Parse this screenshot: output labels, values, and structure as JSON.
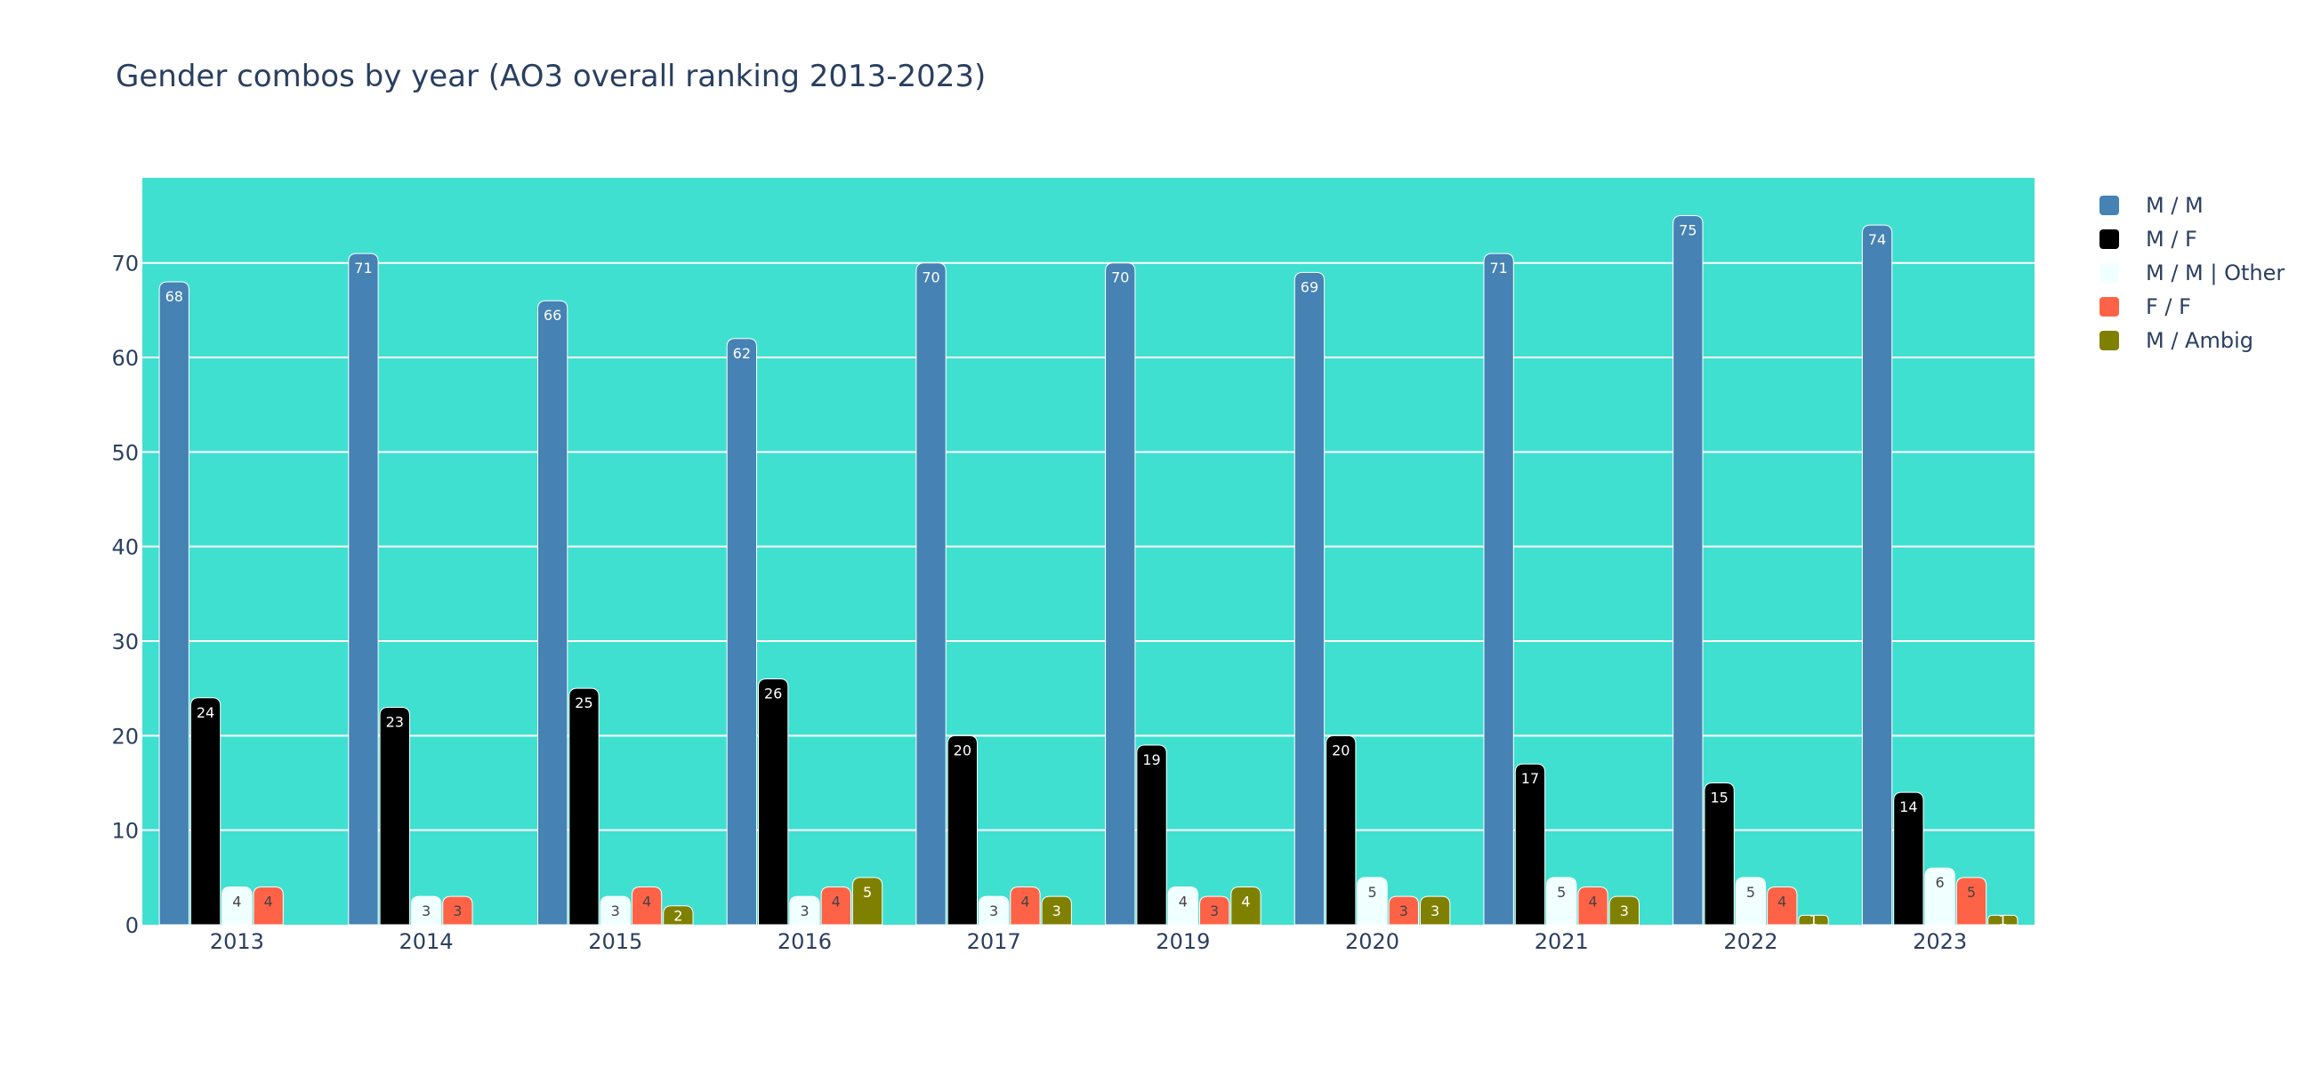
{
  "chart_data": {
    "type": "bar",
    "title": "Gender combos by year (AO3 overall ranking 2013-2023)",
    "xlabel": "",
    "ylabel": "",
    "categories": [
      "2013",
      "2014",
      "2015",
      "2016",
      "2017",
      "2019",
      "2020",
      "2021",
      "2022",
      "2023"
    ],
    "ylim": [
      0,
      79
    ],
    "yticks": [
      0,
      10,
      20,
      30,
      40,
      50,
      60,
      70
    ],
    "grid": true,
    "legend_position": "top-right",
    "plot_background": "#40e0d0",
    "series": [
      {
        "name": "M / M",
        "color": "#4682b4",
        "label_color": "#ffffff",
        "values": [
          68,
          71,
          66,
          62,
          70,
          70,
          69,
          71,
          75,
          74
        ]
      },
      {
        "name": "M / F",
        "color": "#000000",
        "label_color": "#ffffff",
        "values": [
          24,
          23,
          25,
          26,
          20,
          19,
          20,
          17,
          15,
          14
        ]
      },
      {
        "name": "M / M | Other",
        "color": "#f0ffff",
        "label_color": "#444444",
        "values": [
          4,
          3,
          3,
          3,
          3,
          4,
          5,
          5,
          5,
          6
        ]
      },
      {
        "name": "F / F",
        "color": "#ff6347",
        "label_color": "#444444",
        "values": [
          4,
          3,
          4,
          4,
          4,
          3,
          3,
          4,
          4,
          5
        ]
      },
      {
        "name": "M / Ambig",
        "color": "#808000",
        "label_color": "#ffffff",
        "values": [
          null,
          null,
          2,
          5,
          3,
          4,
          3,
          3,
          1,
          1
        ]
      }
    ]
  }
}
